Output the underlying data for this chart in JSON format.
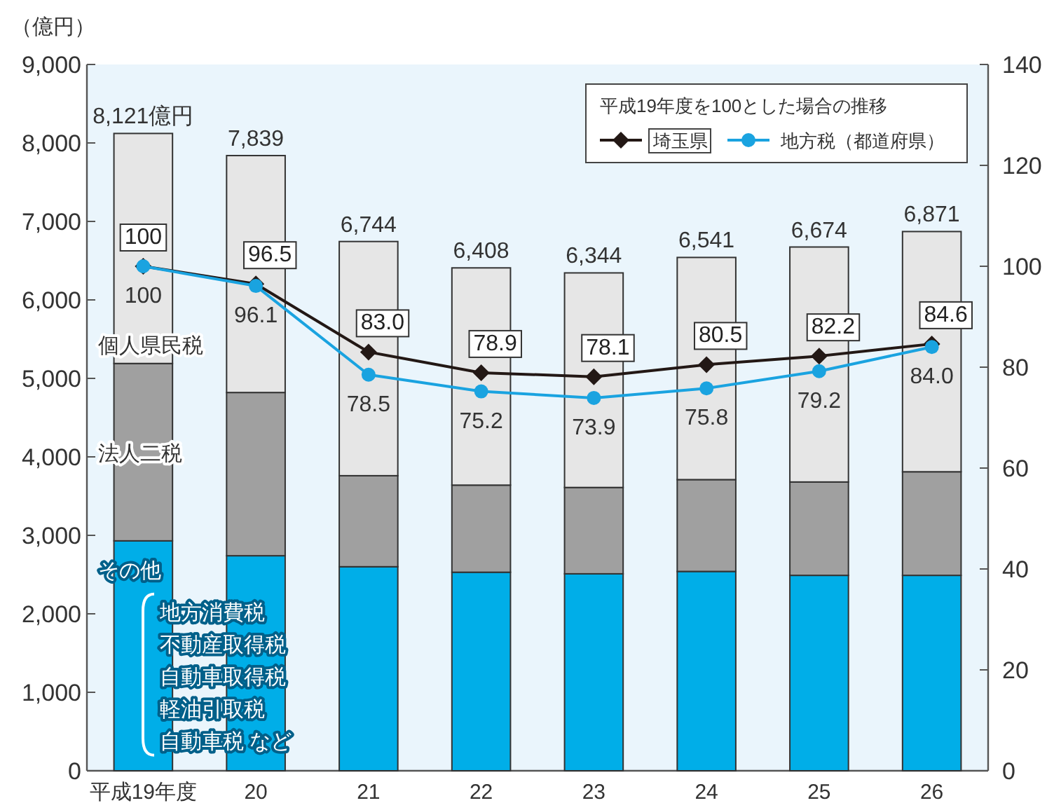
{
  "chart_data": {
    "type": "bar",
    "stacked": true,
    "ylabel": "（億円）",
    "legend_title": "平成19年度を100とした場合の推移",
    "legend": "top right",
    "categories": [
      "平成19年度",
      "20",
      "21",
      "22",
      "23",
      "24",
      "25",
      "26"
    ],
    "series": [
      {
        "name": "その他",
        "type": "bar",
        "color": "#00aee8",
        "values": [
          2930,
          2740,
          2600,
          2530,
          2510,
          2540,
          2490,
          2490
        ]
      },
      {
        "name": "法人二税",
        "type": "bar",
        "color": "#a0a0a0",
        "values": [
          2260,
          2080,
          1160,
          1110,
          1100,
          1170,
          1190,
          1320
        ]
      },
      {
        "name": "個人県民税",
        "type": "bar",
        "color": "#e6e6e6",
        "values": [
          2931,
          3019,
          2984,
          2768,
          2734,
          2831,
          2994,
          3061
        ]
      },
      {
        "name": "埼玉県",
        "type": "line",
        "axis": "y2",
        "marker": "diamond",
        "color": "#231815",
        "values": [
          100,
          96.5,
          83.0,
          78.9,
          78.1,
          80.5,
          82.2,
          84.6
        ],
        "value_labels": [
          "100",
          "96.5",
          "83.0",
          "78.9",
          "78.1",
          "80.5",
          "82.2",
          "84.6"
        ]
      },
      {
        "name": "地方税（都道府県）",
        "type": "line",
        "axis": "y2",
        "marker": "circle",
        "color": "#1aa3e0",
        "values": [
          100,
          96.1,
          78.5,
          75.2,
          73.9,
          75.8,
          79.2,
          84.0
        ],
        "value_labels": [
          "100",
          "96.1",
          "78.5",
          "75.2",
          "73.9",
          "75.8",
          "79.2",
          "84.0"
        ]
      }
    ],
    "totals": [
      "8,121億円",
      "7,839",
      "6,744",
      "6,408",
      "6,344",
      "6,541",
      "6,674",
      "6,871"
    ],
    "annotations": [
      "地方消費税",
      "不動産取得税",
      "自動車取得税",
      "軽油引取税",
      "自動車税 など"
    ],
    "ylim": [
      0,
      9000
    ],
    "yticks": [
      0,
      {
        "value": 1000,
        "label": "1,000"
      },
      {
        "value": 2000,
        "label": "2,000"
      },
      {
        "value": 3000,
        "label": "3,000"
      },
      {
        "value": 4000,
        "label": "4,000"
      },
      {
        "value": 5000,
        "label": "5,000"
      },
      {
        "value": 6000,
        "label": "6,000"
      },
      {
        "value": 7000,
        "label": "7,000"
      },
      {
        "value": 8000,
        "label": "8,000"
      },
      {
        "value": 9000,
        "label": "9,000"
      }
    ],
    "y2lim": [
      0,
      140
    ],
    "y2ticks": [
      0,
      20,
      40,
      60,
      80,
      100,
      120,
      140
    ]
  }
}
